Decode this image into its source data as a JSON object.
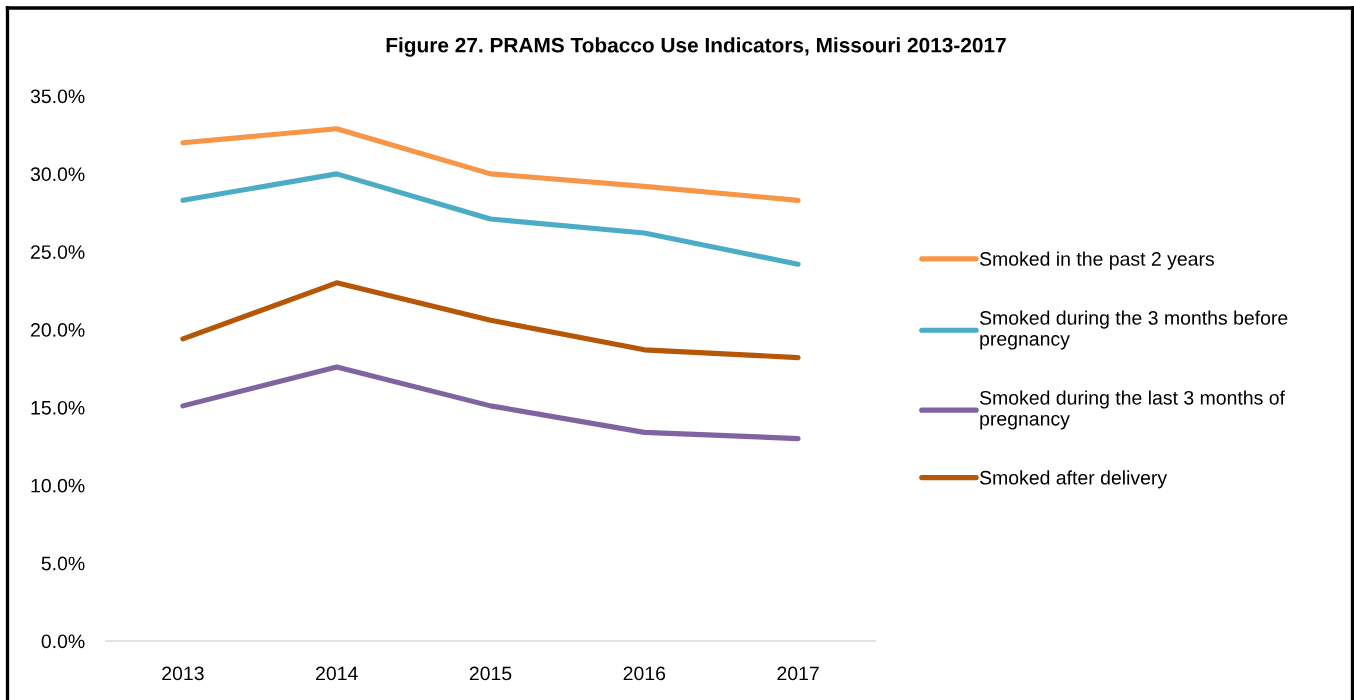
{
  "chart_data": {
    "type": "line",
    "title": "Figure 27. PRAMS Tobacco Use Indicators, Missouri 2013-2017",
    "categories": [
      "2013",
      "2014",
      "2015",
      "2016",
      "2017"
    ],
    "series": [
      {
        "name": "Smoked in the past 2 years",
        "color": "#f79646",
        "values": [
          32.0,
          32.9,
          30.0,
          29.2,
          28.3
        ]
      },
      {
        "name": "Smoked during the 3 months before pregnancy",
        "color": "#4bacc6",
        "values": [
          28.3,
          30.0,
          27.1,
          26.2,
          24.2
        ]
      },
      {
        "name": "Smoked during the last 3 months of pregnancy",
        "color": "#8064a2",
        "values": [
          15.1,
          17.6,
          15.1,
          13.4,
          13.0
        ]
      },
      {
        "name": "Smoked after delivery",
        "color": "#b65708",
        "values": [
          19.4,
          23.0,
          20.6,
          18.7,
          18.2
        ]
      }
    ],
    "ylim": [
      0,
      35
    ],
    "yticks": [
      {
        "value": 0,
        "label": "0.0%"
      },
      {
        "value": 5,
        "label": "5.0%"
      },
      {
        "value": 10,
        "label": "10.0%"
      },
      {
        "value": 15,
        "label": "15.0%"
      },
      {
        "value": 20,
        "label": "20.0%"
      },
      {
        "value": 25,
        "label": "25.0%"
      },
      {
        "value": 30,
        "label": "30.0%"
      },
      {
        "value": 35,
        "label": "35.0%"
      }
    ],
    "legend": "right",
    "line_style": "solid"
  }
}
